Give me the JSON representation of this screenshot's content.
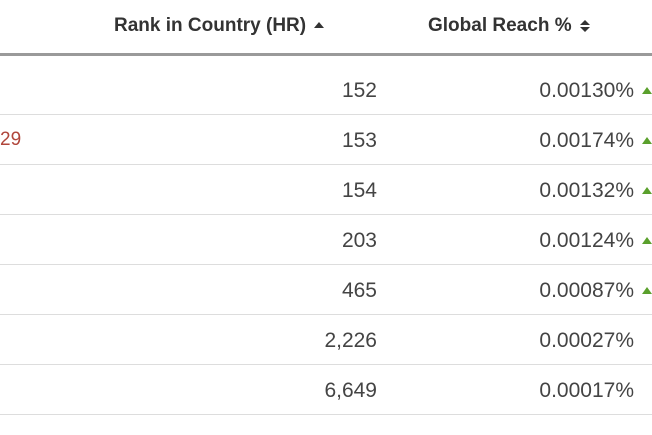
{
  "header": {
    "rank_label": "Rank in Country (HR)",
    "reach_label": "Global Reach %"
  },
  "colors": {
    "trend_up": "#5aa02c",
    "link_text": "#b0463b",
    "divider": "#9a9a9a"
  },
  "rows": [
    {
      "left": "",
      "rank": "152",
      "reach": "0.00130%",
      "trend": "up"
    },
    {
      "left": "29",
      "rank": "153",
      "reach": "0.00174%",
      "trend": "up"
    },
    {
      "left": "",
      "rank": "154",
      "reach": "0.00132%",
      "trend": "up"
    },
    {
      "left": "",
      "rank": "203",
      "reach": "0.00124%",
      "trend": "up"
    },
    {
      "left": "",
      "rank": "465",
      "reach": "0.00087%",
      "trend": "up"
    },
    {
      "left": "",
      "rank": "2,226",
      "reach": "0.00027%",
      "trend": "none"
    },
    {
      "left": "",
      "rank": "6,649",
      "reach": "0.00017%",
      "trend": "none"
    }
  ]
}
